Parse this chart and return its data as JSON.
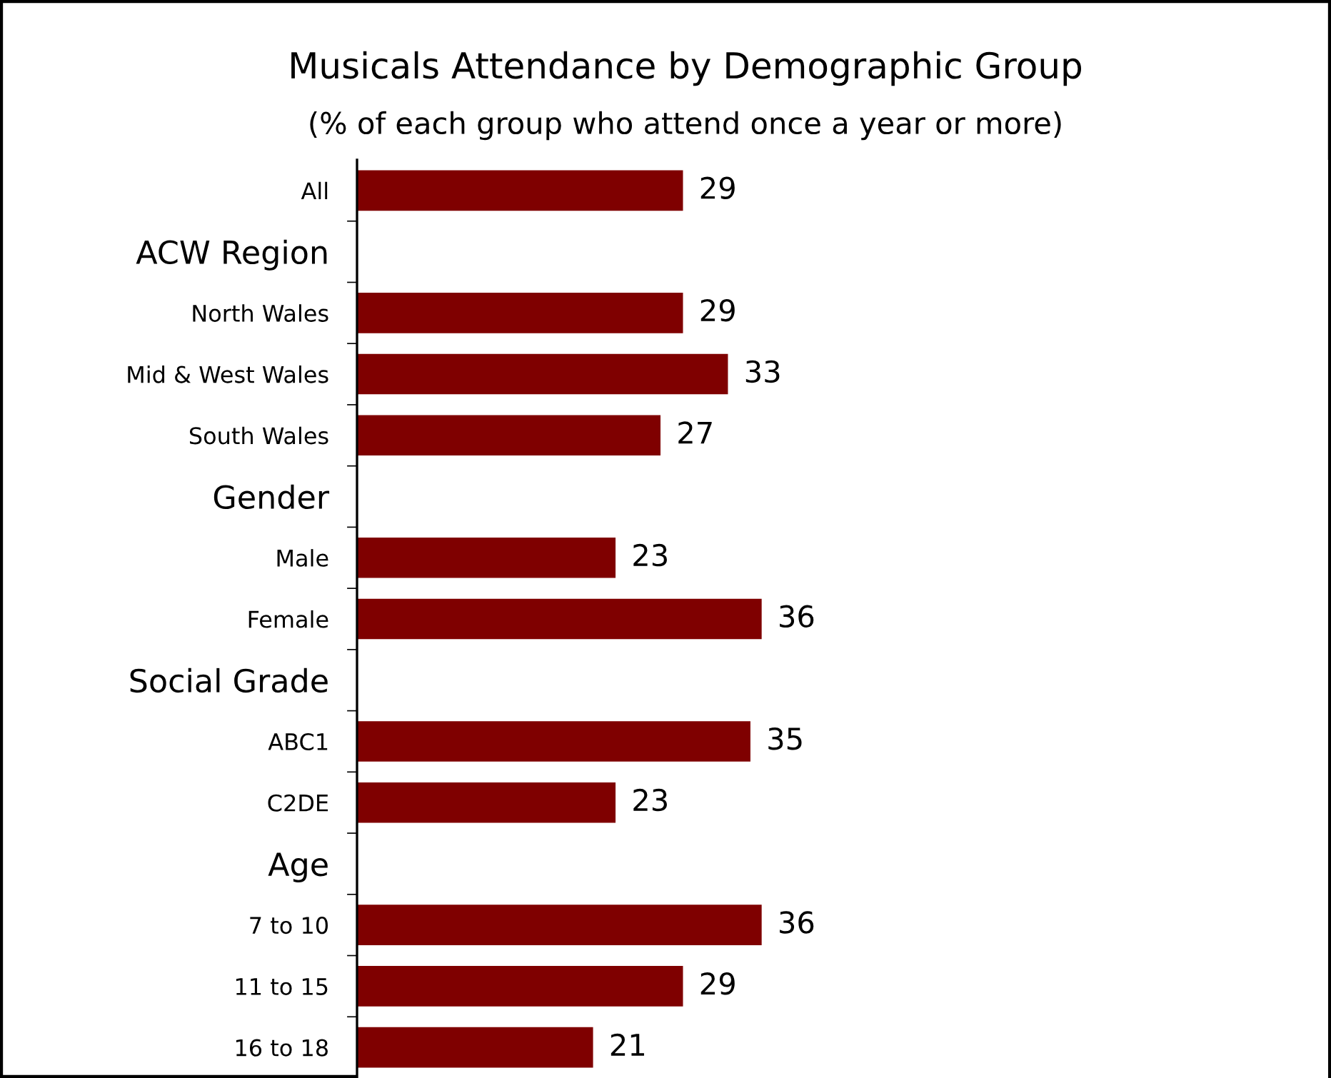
{
  "chart_data": {
    "type": "bar",
    "orientation": "horizontal",
    "title": "Musicals Attendance by Demographic Group",
    "subtitle": "(% of each group who attend once a year or more)",
    "categories": [
      "All",
      "ACW Region",
      "North Wales",
      "Mid & West Wales",
      "South Wales",
      "Gender",
      "Male",
      "Female",
      "Social Grade",
      "ABC1",
      "C2DE",
      "Age",
      "7 to 10",
      "11 to 15",
      "16 to 18"
    ],
    "values": [
      29,
      null,
      29,
      33,
      27,
      null,
      23,
      36,
      null,
      35,
      23,
      null,
      36,
      29,
      21
    ],
    "color": "#7f0000",
    "data_labels": true,
    "grid": false,
    "legend": false
  }
}
